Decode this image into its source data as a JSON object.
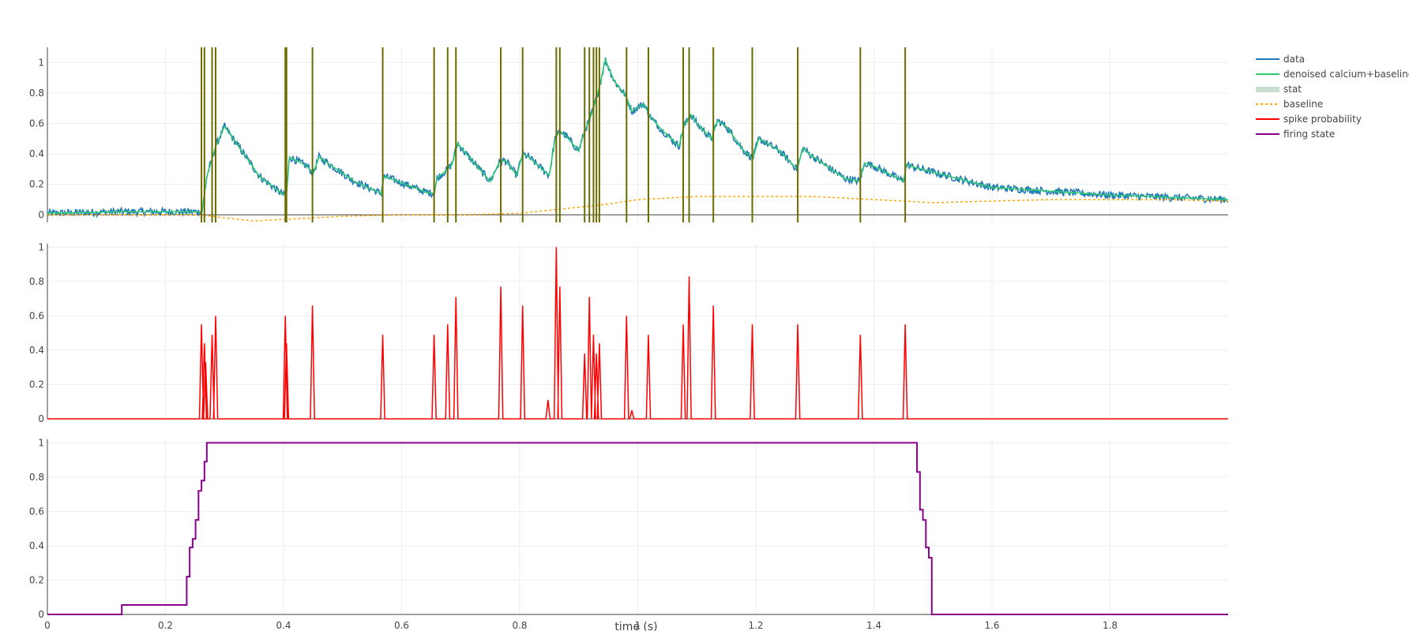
{
  "chart_data": {
    "type": "line",
    "xlabel": "time (s)",
    "xlim": [
      0,
      2.0
    ],
    "x_ticks": [
      0,
      0.2,
      0.4,
      0.6,
      0.8,
      1,
      1.2,
      1.4,
      1.6,
      1.8
    ],
    "x_tick_labels": [
      "0",
      "0.2",
      "0.4",
      "0.6",
      "0.8",
      "1",
      "1.2",
      "1.4",
      "1.6",
      "1.8"
    ],
    "y_ticks": [
      0,
      0.2,
      0.4,
      0.6,
      0.8,
      1
    ],
    "y_tick_labels": [
      "0",
      "0.2",
      "0.4",
      "0.6",
      "0.8",
      "1"
    ],
    "grid": true,
    "legend_position": "right",
    "colors": {
      "data": "#1f77b4",
      "denoised": "#2ecc71",
      "stat": "#c9ddd1",
      "baseline": "#ffa500",
      "spike": "#ff0000",
      "firing": "#8b008b",
      "spike_lines": "#6b6b00",
      "zero_line": "#444444"
    },
    "legend": [
      {
        "key": "data",
        "label": "data"
      },
      {
        "key": "denoised",
        "label": "denoised calcium+baseline"
      },
      {
        "key": "stat",
        "label": "stat"
      },
      {
        "key": "baseline",
        "label": "baseline"
      },
      {
        "key": "spike",
        "label": "spike probability"
      },
      {
        "key": "firing",
        "label": "firing state"
      }
    ],
    "panels": [
      {
        "name": "calcium",
        "ylim": [
          -0.05,
          1.1
        ],
        "series": [
          {
            "name": "denoised calcium+baseline",
            "key": "denoised",
            "x": [
              0,
              0.12,
              0.2,
              0.262,
              0.27,
              0.285,
              0.3,
              0.36,
              0.4,
              0.405,
              0.41,
              0.44,
              0.45,
              0.46,
              0.52,
              0.565,
              0.57,
              0.58,
              0.64,
              0.655,
              0.66,
              0.678,
              0.685,
              0.695,
              0.705,
              0.75,
              0.765,
              0.775,
              0.795,
              0.805,
              0.815,
              0.85,
              0.86,
              0.868,
              0.878,
              0.9,
              0.91,
              0.918,
              0.925,
              0.935,
              0.945,
              0.96,
              0.98,
              0.99,
              1.01,
              1.02,
              1.04,
              1.07,
              1.078,
              1.09,
              1.1,
              1.125,
              1.135,
              1.15,
              1.18,
              1.195,
              1.205,
              1.24,
              1.27,
              1.28,
              1.29,
              1.35,
              1.375,
              1.385,
              1.4,
              1.45,
              1.455,
              1.47,
              1.6,
              1.8,
              2.0
            ],
            "y": [
              0.01,
              0.02,
              0.02,
              0.02,
              0.25,
              0.45,
              0.58,
              0.25,
              0.13,
              0.14,
              0.38,
              0.32,
              0.27,
              0.38,
              0.22,
              0.14,
              0.25,
              0.24,
              0.15,
              0.14,
              0.24,
              0.3,
              0.33,
              0.47,
              0.42,
              0.22,
              0.34,
              0.36,
              0.26,
              0.4,
              0.38,
              0.26,
              0.5,
              0.55,
              0.52,
              0.42,
              0.55,
              0.62,
              0.7,
              0.84,
              1.02,
              0.88,
              0.78,
              0.68,
              0.73,
              0.65,
              0.56,
              0.45,
              0.58,
              0.66,
              0.6,
              0.5,
              0.62,
              0.58,
              0.42,
              0.37,
              0.5,
              0.42,
              0.3,
              0.44,
              0.4,
              0.24,
              0.22,
              0.34,
              0.32,
              0.22,
              0.33,
              0.31,
              0.18,
              0.13,
              0.1
            ]
          },
          {
            "name": "baseline",
            "key": "baseline",
            "x": [
              0,
              0.1,
              0.2,
              0.26,
              0.3,
              0.35,
              0.4,
              0.5,
              0.6,
              0.7,
              0.8,
              0.9,
              0.95,
              1.0,
              1.1,
              1.15,
              1.2,
              1.25,
              1.3,
              1.4,
              1.5,
              1.6,
              1.7,
              1.8,
              1.9,
              2.0
            ],
            "y": [
              0.0,
              0.0,
              0.0,
              0.0,
              -0.02,
              -0.04,
              -0.03,
              -0.01,
              0.0,
              0.0,
              0.01,
              0.05,
              0.07,
              0.1,
              0.12,
              0.12,
              0.12,
              0.12,
              0.12,
              0.1,
              0.08,
              0.09,
              0.1,
              0.1,
              0.1,
              0.09
            ]
          }
        ],
        "data_trace_noise_amplitude": 0.025,
        "spike_times": [
          0.261,
          0.266,
          0.279,
          0.285,
          0.403,
          0.405,
          0.449,
          0.568,
          0.655,
          0.678,
          0.692,
          0.768,
          0.805,
          0.862,
          0.868,
          0.91,
          0.918,
          0.925,
          0.93,
          0.935,
          0.981,
          1.018,
          1.077,
          1.087,
          1.128,
          1.194,
          1.271,
          1.377,
          1.453
        ]
      },
      {
        "name": "spike-probability",
        "ylim": [
          0,
          1.02
        ],
        "series": [
          {
            "name": "spike probability",
            "key": "spike",
            "peaks": [
              {
                "t": 0.261,
                "v": 0.55
              },
              {
                "t": 0.266,
                "v": 0.44
              },
              {
                "t": 0.268,
                "v": 0.33
              },
              {
                "t": 0.279,
                "v": 0.49
              },
              {
                "t": 0.285,
                "v": 0.6
              },
              {
                "t": 0.403,
                "v": 0.6
              },
              {
                "t": 0.405,
                "v": 0.44
              },
              {
                "t": 0.449,
                "v": 0.66
              },
              {
                "t": 0.568,
                "v": 0.49
              },
              {
                "t": 0.655,
                "v": 0.49
              },
              {
                "t": 0.678,
                "v": 0.55
              },
              {
                "t": 0.692,
                "v": 0.71
              },
              {
                "t": 0.768,
                "v": 0.77
              },
              {
                "t": 0.805,
                "v": 0.66
              },
              {
                "t": 0.848,
                "v": 0.11
              },
              {
                "t": 0.862,
                "v": 1.0
              },
              {
                "t": 0.868,
                "v": 0.77
              },
              {
                "t": 0.91,
                "v": 0.38
              },
              {
                "t": 0.918,
                "v": 0.71
              },
              {
                "t": 0.925,
                "v": 0.49
              },
              {
                "t": 0.93,
                "v": 0.38
              },
              {
                "t": 0.935,
                "v": 0.44
              },
              {
                "t": 0.981,
                "v": 0.6
              },
              {
                "t": 0.99,
                "v": 0.05
              },
              {
                "t": 1.018,
                "v": 0.49
              },
              {
                "t": 1.077,
                "v": 0.55
              },
              {
                "t": 1.087,
                "v": 0.83
              },
              {
                "t": 1.128,
                "v": 0.66
              },
              {
                "t": 1.194,
                "v": 0.55
              },
              {
                "t": 1.271,
                "v": 0.55
              },
              {
                "t": 1.377,
                "v": 0.49
              },
              {
                "t": 1.453,
                "v": 0.55
              }
            ]
          }
        ]
      },
      {
        "name": "firing-state",
        "ylim": [
          0,
          1.02
        ],
        "series": [
          {
            "name": "firing state",
            "key": "firing",
            "x": [
              0,
              0.126,
              0.126,
              0.236,
              0.236,
              0.241,
              0.241,
              0.246,
              0.246,
              0.251,
              0.251,
              0.256,
              0.256,
              0.261,
              0.261,
              0.266,
              0.266,
              0.27,
              0.27,
              1.473,
              1.473,
              1.478,
              1.478,
              1.483,
              1.483,
              1.488,
              1.488,
              1.493,
              1.493,
              1.498,
              1.498,
              1.503,
              1.503,
              2.0
            ],
            "y": [
              0,
              0,
              0.055,
              0.055,
              0.22,
              0.22,
              0.39,
              0.39,
              0.44,
              0.44,
              0.55,
              0.55,
              0.72,
              0.72,
              0.78,
              0.78,
              0.89,
              0.89,
              1.0,
              1.0,
              0.83,
              0.83,
              0.61,
              0.61,
              0.55,
              0.55,
              0.39,
              0.39,
              0.33,
              0.33,
              0.0,
              0.0,
              0.0,
              0.0
            ]
          }
        ]
      }
    ]
  }
}
